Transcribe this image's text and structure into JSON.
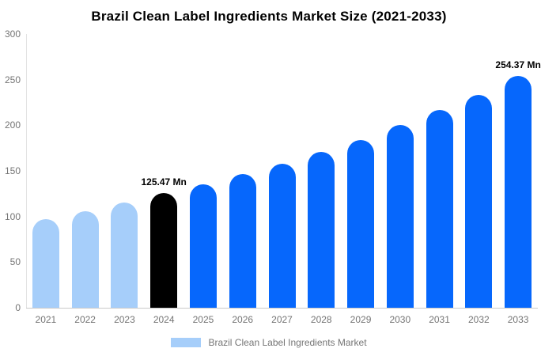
{
  "title": "Brazil Clean Label Ingredients Market Size (2021-2033)",
  "legend": {
    "label": "Brazil Clean Label Ingredients Market",
    "swatch_color": "#a6cefa"
  },
  "colors": {
    "historical_bar": "#a6cefa",
    "base_year_bar": "#000000",
    "forecast_bar": "#0667fc",
    "axis_text": "#757575",
    "annotation_text": "#000000"
  },
  "chart_data": {
    "type": "bar",
    "title": "Brazil Clean Label Ingredients Market Size (2021-2033)",
    "unit": "Mn",
    "categories": [
      "2021",
      "2022",
      "2023",
      "2024",
      "2025",
      "2026",
      "2027",
      "2028",
      "2029",
      "2030",
      "2031",
      "2032",
      "2033"
    ],
    "values": [
      97,
      106,
      115.4,
      125.47,
      135,
      146.5,
      158,
      171,
      184,
      200,
      216.5,
      233.5,
      254.37
    ],
    "bar_colors": [
      "#a6cefa",
      "#a6cefa",
      "#a6cefa",
      "#000000",
      "#0667fc",
      "#0667fc",
      "#0667fc",
      "#0667fc",
      "#0667fc",
      "#0667fc",
      "#0667fc",
      "#0667fc",
      "#0667fc"
    ],
    "annotations": [
      {
        "category": "2024",
        "text": "125.47 Mn"
      },
      {
        "category": "2033",
        "text": "254.37 Mn"
      }
    ],
    "yticks": [
      0,
      50,
      100,
      150,
      200,
      250,
      300
    ],
    "ylim": [
      0,
      300
    ],
    "xlabel": "",
    "ylabel": "",
    "grid": false,
    "legend_entries": [
      "Brazil Clean Label Ingredients Market"
    ],
    "legend_position": "bottom"
  }
}
